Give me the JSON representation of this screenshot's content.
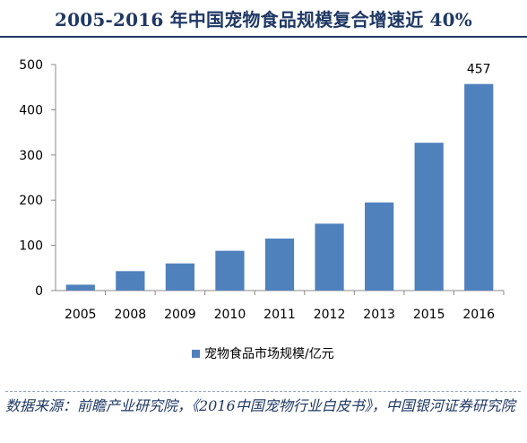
{
  "title": "2005-2016 年中国宠物食品规模复合增速近 40%",
  "source": "数据来源：前瞻产业研究院，《2016中国宠物行业白皮书》，中国银河证券研究院",
  "colors": {
    "bar": "#4F81BD",
    "title": "#1F3864",
    "axis": "#888888",
    "source_text": "#1F3864"
  },
  "chart_data": {
    "type": "bar",
    "categories": [
      "2005",
      "2008",
      "2009",
      "2010",
      "2011",
      "2012",
      "2013",
      "2015",
      "2016"
    ],
    "series": [
      {
        "name": "宠物食品市场规模/亿元",
        "values": [
          13,
          43,
          60,
          88,
          115,
          148,
          195,
          327,
          457
        ]
      }
    ],
    "ylim": [
      0,
      500
    ],
    "yticks": [
      0,
      100,
      200,
      300,
      400,
      500
    ],
    "data_labels": [
      {
        "category": "2016",
        "value": "457"
      }
    ],
    "xlabel": "",
    "ylabel": "",
    "grid": false,
    "legend_position": "bottom"
  }
}
